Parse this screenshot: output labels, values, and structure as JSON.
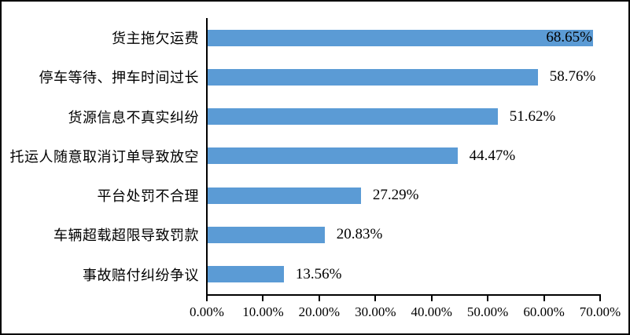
{
  "chart_data": {
    "type": "bar",
    "orientation": "horizontal",
    "title": "",
    "xlabel": "",
    "ylabel": "",
    "categories": [
      "货主拖欠运费",
      "停车等待、押车时间过长",
      "货源信息不真实纠纷",
      "托运人随意取消订单导致放空",
      "平台处罚不合理",
      "车辆超载超限导致罚款",
      "事故赔付纠纷争议"
    ],
    "values": [
      68.65,
      58.76,
      51.62,
      44.47,
      27.29,
      20.83,
      13.56
    ],
    "value_labels": [
      "68.65%",
      "58.76%",
      "51.62%",
      "44.47%",
      "27.29%",
      "20.83%",
      "13.56%"
    ],
    "x_ticks": [
      "0.00%",
      "10.00%",
      "20.00%",
      "30.00%",
      "40.00%",
      "50.00%",
      "60.00%",
      "70.00%"
    ],
    "xlim": [
      0,
      70
    ],
    "grid": false,
    "legend": false,
    "bar_color": "#5B9BD5",
    "axis_color": "#000000",
    "text_color": "#000000",
    "background_color": "#FFFFFF"
  }
}
